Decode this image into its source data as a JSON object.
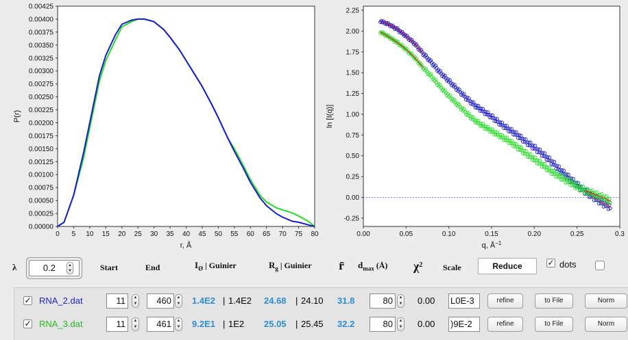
{
  "left_plot": {
    "ylabel": "P(r)",
    "xlabel": "r, Å",
    "y_ticks": [
      "0.00425",
      "0.00400",
      "0.00375",
      "0.00350",
      "0.00325",
      "0.00300",
      "0.00275",
      "0.00250",
      "0.00225",
      "0.00200",
      "0.00175",
      "0.00150",
      "0.00125",
      "0.00100",
      "0.00075",
      "0.00050",
      "0.00025",
      "0.00000"
    ],
    "x_ticks": [
      "0",
      "5",
      "10",
      "15",
      "20",
      "25",
      "30",
      "35",
      "40",
      "45",
      "50",
      "55",
      "60",
      "65",
      "70",
      "75",
      "80"
    ]
  },
  "right_plot": {
    "ylabel": "ln [I(q)]",
    "xlabel": "q, Å",
    "xlabel_sup": "−1",
    "y_ticks": [
      "2.25",
      "2.00",
      "1.75",
      "1.50",
      "1.25",
      "1.00",
      "0.75",
      "0.50",
      "0.25",
      "0.00",
      "-0.25"
    ],
    "x_ticks": [
      "0.00",
      "0.05",
      "0.10",
      "0.15",
      "0.20",
      "0.25",
      "0.3"
    ]
  },
  "chart_data": [
    {
      "type": "line",
      "ylabel": "P(r)",
      "xlabel": "r, Å",
      "xlim": [
        0,
        80
      ],
      "ylim": [
        0,
        0.00425
      ],
      "series": [
        {
          "color": "#1a1acc",
          "x": [
            0,
            2,
            5,
            8,
            10,
            13,
            15,
            18,
            20,
            23,
            25,
            27,
            30,
            33,
            35,
            38,
            40,
            43,
            45,
            48,
            50,
            53,
            55,
            58,
            60,
            63,
            65,
            68,
            70,
            73,
            75,
            78,
            80
          ],
          "y": [
            0,
            8e-05,
            0.0006,
            0.0014,
            0.002,
            0.0029,
            0.0033,
            0.0037,
            0.0039,
            0.00398,
            0.004,
            0.004,
            0.00395,
            0.0038,
            0.00365,
            0.0034,
            0.0032,
            0.0029,
            0.0027,
            0.00235,
            0.0021,
            0.0017,
            0.00145,
            0.0011,
            0.00085,
            0.00055,
            0.0004,
            0.00025,
            0.00018,
            0.0001,
            8e-05,
            3e-05,
            0
          ]
        },
        {
          "color": "#22dd22",
          "x": [
            0,
            2,
            5,
            8,
            10,
            13,
            15,
            18,
            20,
            23,
            25,
            27,
            30,
            33,
            35,
            38,
            40,
            43,
            45,
            48,
            50,
            53,
            55,
            58,
            60,
            63,
            65,
            68,
            70,
            73,
            75,
            78,
            80
          ],
          "y": [
            0,
            8e-05,
            0.0006,
            0.0013,
            0.0019,
            0.0028,
            0.0032,
            0.0036,
            0.00385,
            0.00395,
            0.004,
            0.004,
            0.00395,
            0.0038,
            0.00365,
            0.0034,
            0.0032,
            0.0029,
            0.0027,
            0.00235,
            0.0021,
            0.0017,
            0.0015,
            0.00115,
            0.0009,
            0.0006,
            0.00047,
            0.00036,
            0.00032,
            0.00026,
            0.0002,
            0.0001,
            0
          ]
        }
      ]
    },
    {
      "type": "scatter",
      "ylabel": "ln [I(q)]",
      "xlabel": "q, Å−1",
      "xlim": [
        0,
        0.3
      ],
      "ylim": [
        -0.35,
        2.3
      ],
      "series": [
        {
          "color": "#1a1acc",
          "x": [
            0.02,
            0.03,
            0.04,
            0.05,
            0.06,
            0.07,
            0.08,
            0.09,
            0.1,
            0.11,
            0.12,
            0.13,
            0.14,
            0.15,
            0.16,
            0.17,
            0.18,
            0.19,
            0.2,
            0.21,
            0.22,
            0.23,
            0.24,
            0.25,
            0.26,
            0.27,
            0.28,
            0.29
          ],
          "y": [
            2.12,
            2.08,
            2.02,
            1.94,
            1.85,
            1.73,
            1.62,
            1.5,
            1.4,
            1.3,
            1.2,
            1.11,
            1.04,
            0.97,
            0.89,
            0.82,
            0.75,
            0.67,
            0.6,
            0.52,
            0.43,
            0.33,
            0.24,
            0.15,
            0.07,
            0.0,
            -0.07,
            -0.12
          ]
        },
        {
          "color": "#22dd22",
          "x": [
            0.02,
            0.03,
            0.04,
            0.05,
            0.06,
            0.07,
            0.08,
            0.09,
            0.1,
            0.11,
            0.12,
            0.13,
            0.14,
            0.15,
            0.16,
            0.17,
            0.18,
            0.19,
            0.2,
            0.21,
            0.22,
            0.23,
            0.24,
            0.25,
            0.26,
            0.27,
            0.28,
            0.29
          ],
          "y": [
            1.99,
            1.93,
            1.86,
            1.78,
            1.68,
            1.56,
            1.45,
            1.33,
            1.22,
            1.12,
            1.02,
            0.93,
            0.86,
            0.8,
            0.74,
            0.68,
            0.61,
            0.53,
            0.46,
            0.39,
            0.31,
            0.25,
            0.19,
            0.13,
            0.08,
            0.04,
            0.0,
            -0.05
          ]
        }
      ]
    }
  ],
  "controls": {
    "lambda_label": "λ",
    "lambda_value": "0.2",
    "col_start": "Start",
    "col_end": "End",
    "col_i0_main": "I",
    "col_i0_sub": "Ø",
    "col_i0_rest": " | Guinier",
    "col_rg_main": "R",
    "col_rg_sub": "g",
    "col_rg_rest": " | Guinier",
    "col_rbar": "r̄",
    "col_dmax_main": "d",
    "col_dmax_sub": "max",
    "col_dmax_rest": " (Å)",
    "col_chi_main": "χ",
    "col_chi_sup": "2",
    "col_scale": "Scale",
    "reduce_label": "Reduce",
    "dots_label": "dots",
    "dots_checked": "✓"
  },
  "rows": [
    {
      "check": "✓",
      "name": "RNA_2.dat",
      "name_color": "#2222cc",
      "start": "11",
      "end": "460",
      "i0_refined": "1.4E2",
      "i0_guinier": "1.4E2",
      "rg_refined": "24.68",
      "rg_guinier": "24.10",
      "rbar": "31.8",
      "dmax": "80",
      "chi2": "0.00",
      "scale": "L0E-3",
      "refine": "refine",
      "tofile": "to File",
      "norm": "Norm"
    },
    {
      "check": "✓",
      "name": "RNA_3.dat",
      "name_color": "#22bb22",
      "start": "11",
      "end": "461",
      "i0_refined": "9.2E1",
      "i0_guinier": "1E2",
      "rg_refined": "25.05",
      "rg_guinier": "25.45",
      "rbar": "32.2",
      "dmax": "80",
      "chi2": "0.00",
      "scale": ")9E-2",
      "refine": "refine",
      "tofile": "to File",
      "norm": "Norm"
    }
  ]
}
